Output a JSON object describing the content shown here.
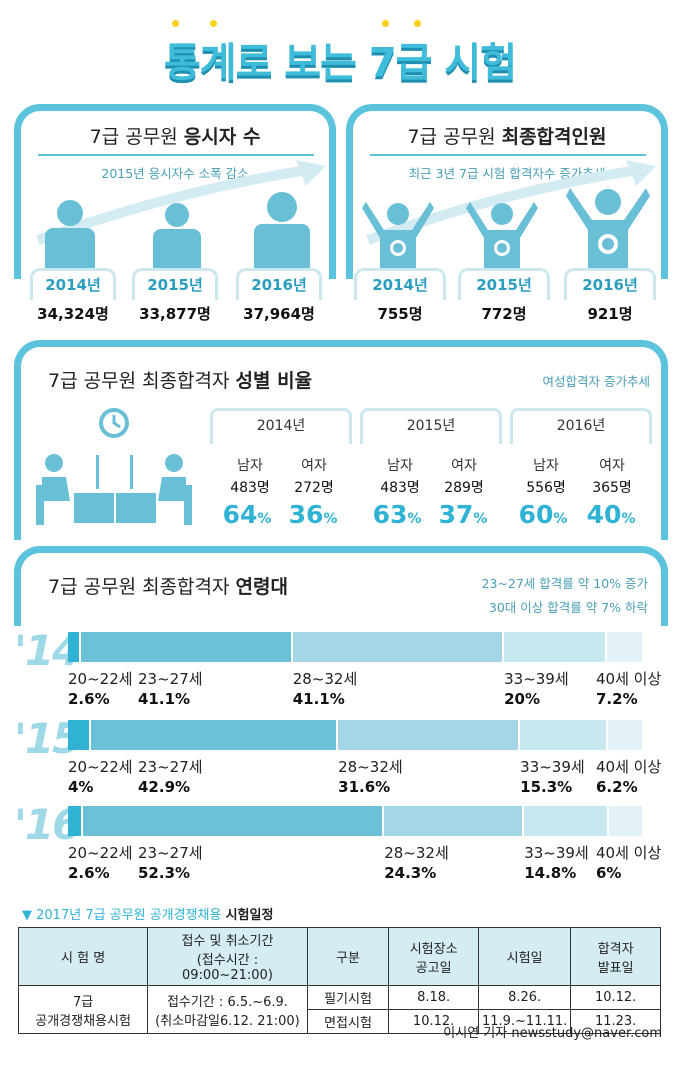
{
  "title": "통계로 보는 7급 시험",
  "applicants": {
    "title_prefix": "7급 공무원 ",
    "title_bold": "응시자 수",
    "subtitle": "2015년 응시자수 소폭 감소",
    "years": [
      "2014년",
      "2015년",
      "2016년"
    ],
    "values": [
      "34,324명",
      "33,877명",
      "37,964명"
    ]
  },
  "passers": {
    "title_prefix": "7급 공무원 ",
    "title_bold": "최종합격인원",
    "subtitle": "최근 3년 7급 시험 합격자수 증가추세",
    "years": [
      "2014년",
      "2015년",
      "2016년"
    ],
    "values": [
      "755명",
      "772명",
      "921명"
    ]
  },
  "gender": {
    "title_prefix": "7급 공무원 최종합격자 ",
    "title_bold": "성별 비율",
    "note": "여성합격자 증가추세",
    "male_label": "남자",
    "female_label": "여자",
    "pct_unit": "%",
    "years": [
      {
        "year": "2014년",
        "male_count": "483명",
        "female_count": "272명",
        "male_pct": "64",
        "female_pct": "36"
      },
      {
        "year": "2015년",
        "male_count": "483명",
        "female_count": "289명",
        "male_pct": "63",
        "female_pct": "37"
      },
      {
        "year": "2016년",
        "male_count": "556명",
        "female_count": "365명",
        "male_pct": "60",
        "female_pct": "40"
      }
    ]
  },
  "age": {
    "title_prefix": "7급 공무원 최종합격자 ",
    "title_bold": "연령대",
    "note1": "23~27세 합격률 약 10% 증가",
    "note2": "30대 이상 합격률 약 7% 하락",
    "colors": [
      "#2fb2d4",
      "#6cc1d7",
      "#a4d7e5",
      "#c8e8f0",
      "#e2f2f7"
    ]
  },
  "chart_data": {
    "type": "bar",
    "categories": [
      "20~22세",
      "23~27세",
      "28~32세",
      "33~39세",
      "40세 이상"
    ],
    "series": [
      {
        "name": "'14",
        "values": [
          2.6,
          41.1,
          41.1,
          20,
          7.2
        ],
        "labels": [
          "2.6%",
          "41.1%",
          "41.1%",
          "20%",
          "7.2%"
        ]
      },
      {
        "name": "'15",
        "values": [
          4,
          42.9,
          31.6,
          15.3,
          6.2
        ],
        "labels": [
          "4%",
          "42.9%",
          "31.6%",
          "15.3%",
          "6.2%"
        ]
      },
      {
        "name": "'16",
        "values": [
          2.6,
          52.3,
          24.3,
          14.8,
          6
        ],
        "labels": [
          "2.6%",
          "52.3%",
          "24.3%",
          "14.8%",
          "6%"
        ]
      }
    ],
    "stacked": true
  },
  "schedule": {
    "heading_prefix": "▼ 2017년 7급 공무원 공개경쟁채용 ",
    "heading_bold": "시험일정",
    "headers": [
      "시 험 명",
      "접수 및 취소기간",
      "(접수시간 : 09:00~21:00)",
      "구분",
      "시험장소",
      "공고일",
      "시험일",
      "합격자",
      "발표일"
    ],
    "exam_name1": "7급",
    "exam_name2": "공개경쟁채용시험",
    "period1": "접수기간 : 6.5.~6.9.",
    "period2": "(취소마감일6.12. 21:00)",
    "rows": [
      {
        "type": "필기시험",
        "notice": "8.18.",
        "exam": "8.26.",
        "result": "10.12."
      },
      {
        "type": "면접시험",
        "notice": "10.12.",
        "exam": "11.9.~11.11.",
        "result": "11.23."
      }
    ]
  },
  "credit": "이시연 기자  newsstudy@naver.com"
}
